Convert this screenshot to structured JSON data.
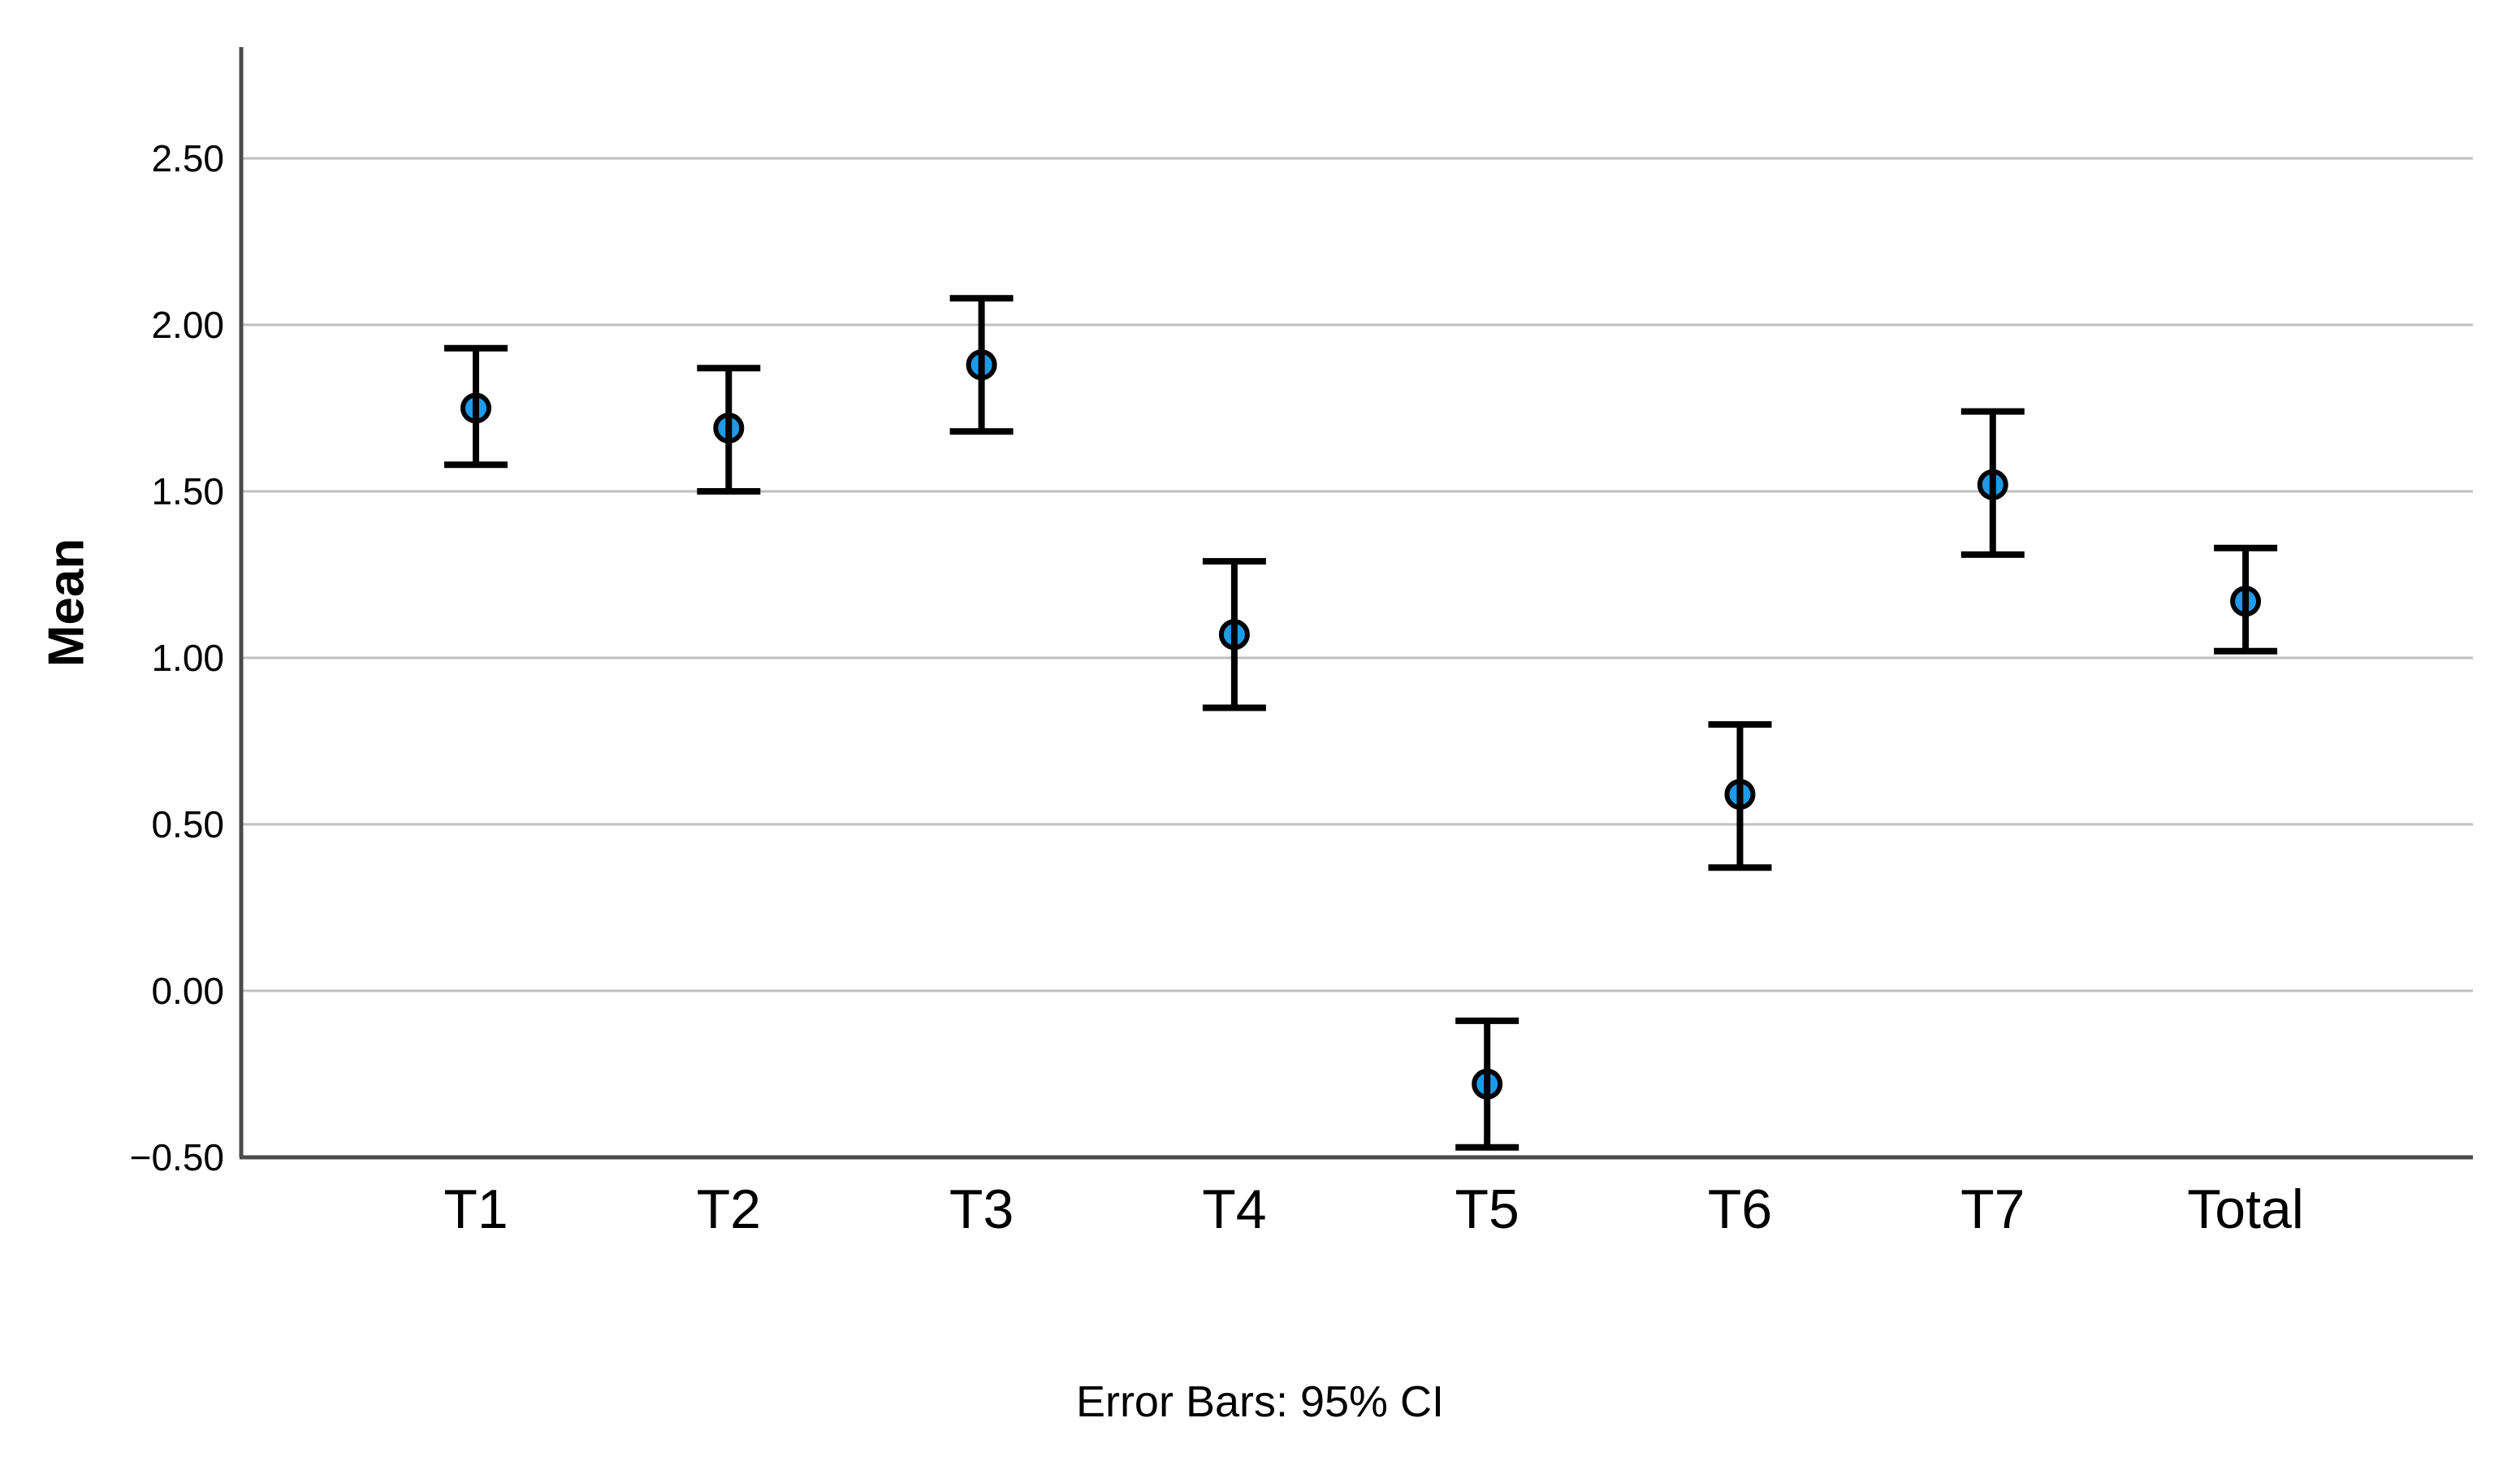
{
  "chart_data": {
    "type": "errorbar",
    "title": "",
    "ylabel": "Mean",
    "xlabel": "",
    "caption": "Error Bars: 95% CI",
    "ci_level": "95%",
    "legend_position": "none",
    "grid": "horizontal",
    "categories": [
      "T1",
      "T2",
      "T3",
      "T4",
      "T5",
      "T6",
      "T7",
      "Total"
    ],
    "means": [
      1.75,
      1.69,
      1.88,
      1.07,
      -0.28,
      0.59,
      1.52,
      1.17
    ],
    "ci_lower": [
      1.58,
      1.5,
      1.68,
      0.85,
      -0.47,
      0.37,
      1.31,
      1.02
    ],
    "ci_upper": [
      1.93,
      1.87,
      2.08,
      1.29,
      -0.09,
      0.8,
      1.74,
      1.33
    ],
    "ylim": [
      -0.5,
      2.834
    ],
    "yticks": [
      {
        "value": 2.5,
        "label": "2.50"
      },
      {
        "value": 2.0,
        "label": "2.00"
      },
      {
        "value": 1.5,
        "label": "1.50"
      },
      {
        "value": 1.0,
        "label": "1.00"
      },
      {
        "value": 0.5,
        "label": "0.50"
      },
      {
        "value": 0.0,
        "label": "0.00"
      },
      {
        "value": -0.5,
        "label": "−0.50"
      }
    ],
    "colors": {
      "marker_fill": "#1D9BE9",
      "marker_stroke": "#000000",
      "error_bar": "#000000",
      "axis": "#4A4A4A",
      "gridline": "#BFBFBF",
      "text": "#000000"
    }
  }
}
